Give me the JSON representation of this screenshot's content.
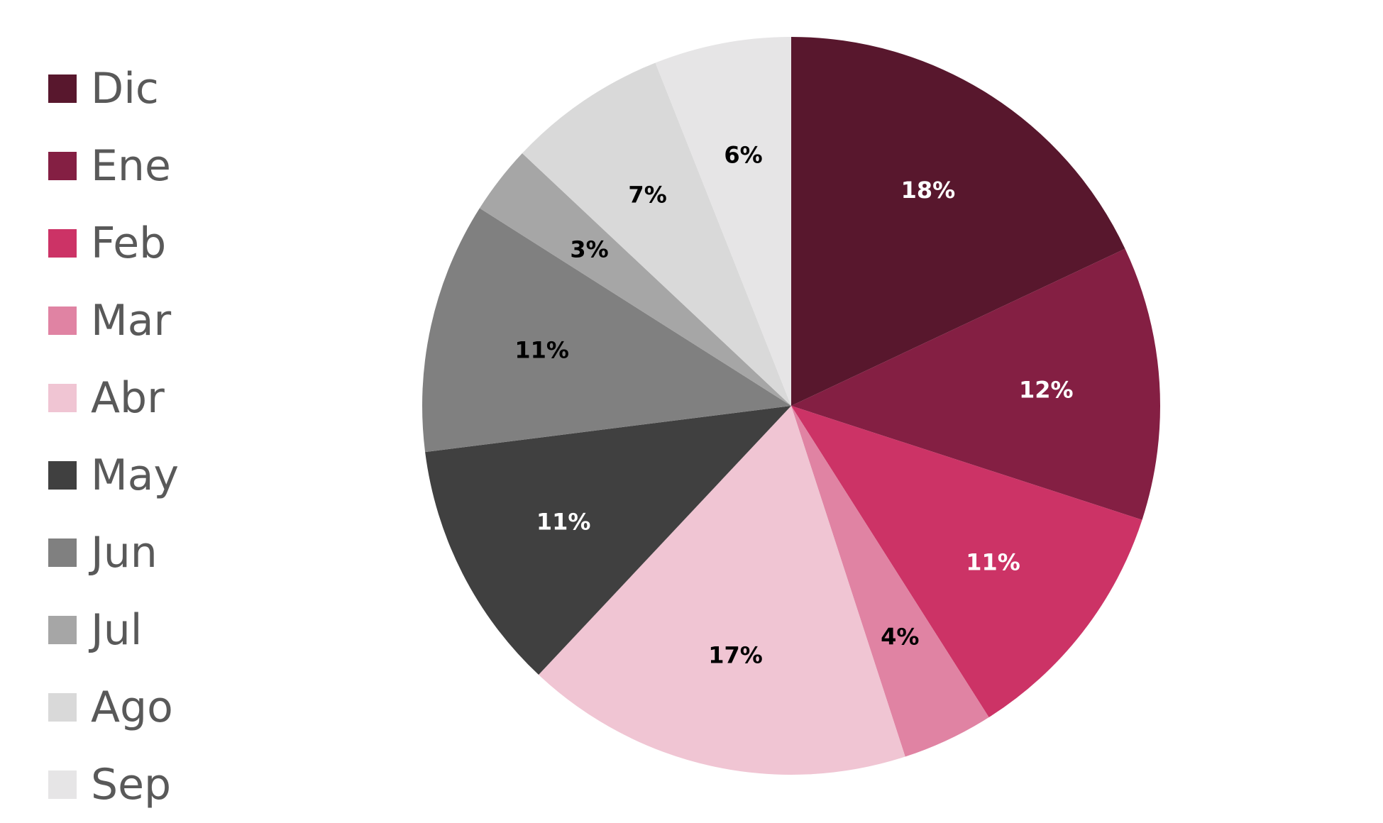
{
  "chart_data": {
    "type": "pie",
    "title": "",
    "legend_position": "left",
    "start_angle": "top",
    "direction": "clockwise",
    "slices": [
      {
        "category": "Dic",
        "value": 18,
        "label": "18%",
        "color": "#58172D",
        "label_color": "#FFFFFF"
      },
      {
        "category": "Ene",
        "value": 12,
        "label": "12%",
        "color": "#841F43",
        "label_color": "#FFFFFF"
      },
      {
        "category": "Feb",
        "value": 11,
        "label": "11%",
        "color": "#CC3366",
        "label_color": "#FFFFFF"
      },
      {
        "category": "Mar",
        "value": 4,
        "label": "4%",
        "color": "#E083A3",
        "label_color": "#000000"
      },
      {
        "category": "Abr",
        "value": 17,
        "label": "17%",
        "color": "#F0C5D3",
        "label_color": "#000000"
      },
      {
        "category": "May",
        "value": 11,
        "label": "11%",
        "color": "#404040",
        "label_color": "#FFFFFF"
      },
      {
        "category": "Jun",
        "value": 11,
        "label": "11%",
        "color": "#808080",
        "label_color": "#000000"
      },
      {
        "category": "Jul",
        "value": 3,
        "label": "3%",
        "color": "#A6A6A6",
        "label_color": "#000000"
      },
      {
        "category": "Ago",
        "value": 7,
        "label": "7%",
        "color": "#D9D9D9",
        "label_color": "#000000"
      },
      {
        "category": "Sep",
        "value": 6,
        "label": "6%",
        "color": "#E6E5E6",
        "label_color": "#000000"
      }
    ]
  }
}
